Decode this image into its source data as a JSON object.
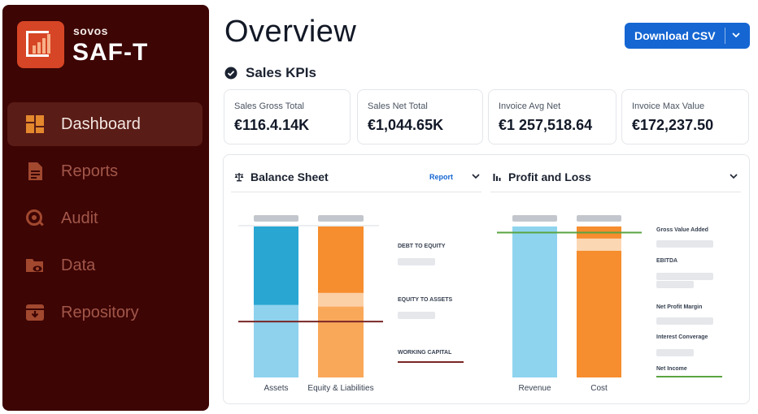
{
  "sidebar": {
    "brand_sub": "sovos",
    "brand_main": "SAF-T",
    "items": [
      {
        "label": "Dashboard",
        "icon": "dashboard-icon",
        "active": true
      },
      {
        "label": "Reports",
        "icon": "report-doc-icon",
        "active": false
      },
      {
        "label": "Audit",
        "icon": "audit-magnifier-icon",
        "active": false
      },
      {
        "label": "Data",
        "icon": "data-folder-icon",
        "active": false
      },
      {
        "label": "Repository",
        "icon": "repository-box-icon",
        "active": false
      }
    ]
  },
  "header": {
    "title": "Overview",
    "download_label": "Download CSV"
  },
  "kpi_section": {
    "title": "Sales KPIs",
    "cards": [
      {
        "label": "Sales Gross Total",
        "value": "€116.4.14K"
      },
      {
        "label": "Sales Net Total",
        "value": "€1,044.65K"
      },
      {
        "label": "Invoice Avg Net",
        "value": "€1 257,518.64"
      },
      {
        "label": "Invoice Max Value",
        "value": "€172,237.50"
      }
    ]
  },
  "balance_sheet": {
    "title": "Balance Sheet",
    "link": "Report",
    "ratios": [
      "DEBT TO EQUITY",
      "EQUITY TO ASSETS",
      "WORKING CAPITAL"
    ]
  },
  "profit_loss": {
    "title": "Profit and Loss",
    "metrics": [
      "Gross Value Added",
      "EBITDA",
      "Net Profit Margin",
      "Interest Converage",
      "Net Income"
    ]
  },
  "colors": {
    "sidebar_bg": "#3d0504",
    "accent_blue": "#1566d2",
    "assets_dark": "#2aa6d3",
    "assets_light": "#8fd2ee",
    "equity_dark": "#f68d2e",
    "equity_light": "#fbd0a7",
    "equity_mid": "#f9a85a",
    "revenue": "#8fd4ef",
    "cost_light": "#fbd7b4",
    "working_capital_line": "#7a2626",
    "net_income_line": "#5aa441"
  },
  "chart_data": [
    {
      "type": "bar",
      "title": "Balance Sheet",
      "categories": [
        "Assets",
        "Equity & Liabilities"
      ],
      "series": [],
      "ylim": [
        0,
        100
      ],
      "stacks": [
        [
          {
            "value": 48
          },
          {
            "value": 52
          }
        ],
        [
          {
            "value": 47
          },
          {
            "value": 9
          },
          {
            "value": 44
          }
        ]
      ],
      "reference_line": 37,
      "legend": [
        "DEBT TO EQUITY",
        "EQUITY TO ASSETS",
        "WORKING CAPITAL"
      ]
    },
    {
      "type": "bar",
      "title": "Profit and Loss",
      "categories": [
        "Revenue",
        "Cost"
      ],
      "series": [],
      "ylim": [
        0,
        100
      ],
      "stacks": [
        [
          {
            "value": 100
          }
        ],
        [
          {
            "value": 84
          },
          {
            "value": 8
          },
          {
            "value": 8
          }
        ]
      ],
      "reference_line": 96,
      "legend": [
        "Gross Value Added",
        "EBITDA",
        "Net Profit Margin",
        "Interest Converage",
        "Net Income"
      ]
    }
  ]
}
